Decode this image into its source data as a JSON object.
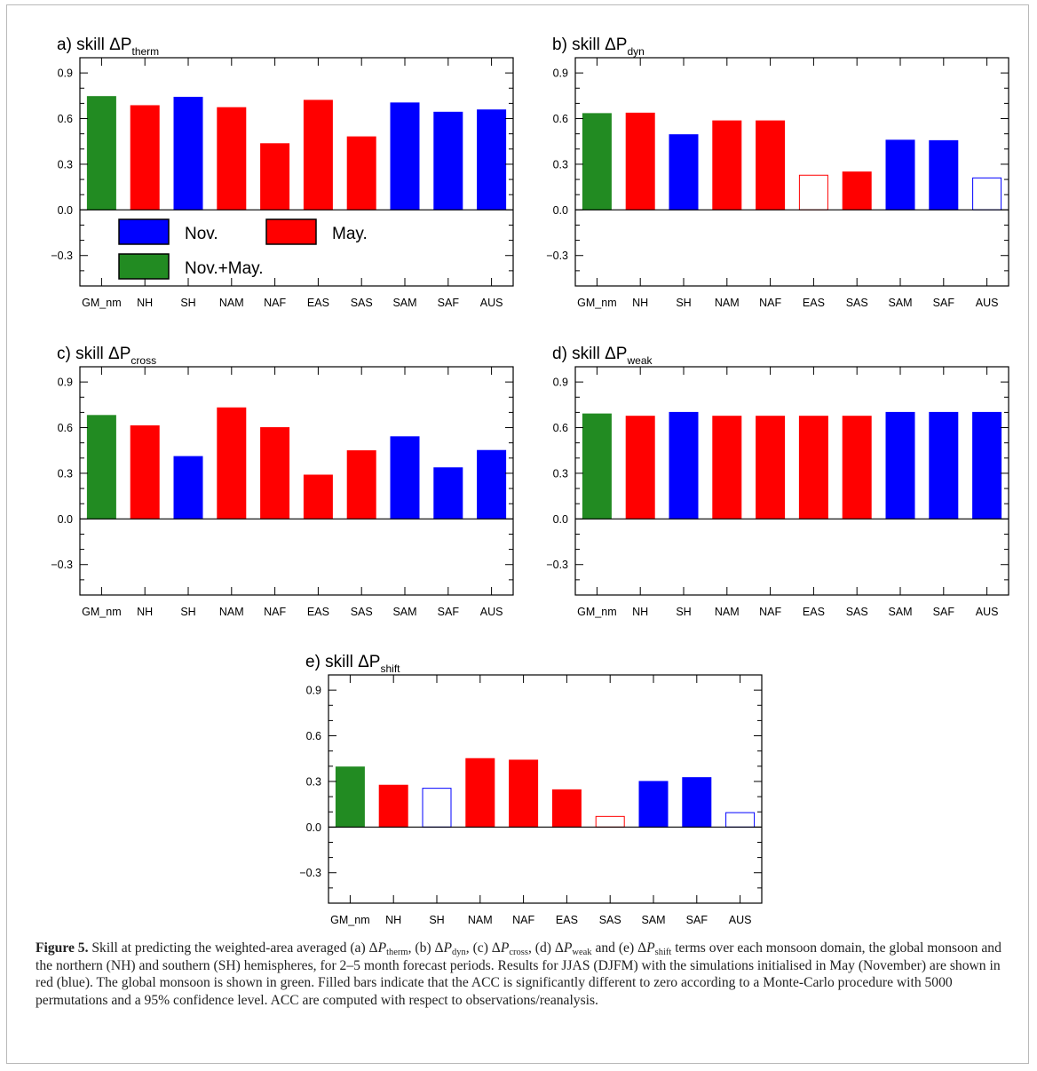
{
  "chart_data": [
    {
      "type": "bar",
      "panel": "a",
      "title": "a)  skill  ΔP",
      "title_subscript": "therm",
      "categories": [
        "GM_nm",
        "NH",
        "SH",
        "NAM",
        "NAF",
        "EAS",
        "SAS",
        "SAM",
        "SAF",
        "AUS"
      ],
      "values": [
        0.745,
        0.685,
        0.74,
        0.672,
        0.435,
        0.72,
        0.48,
        0.703,
        0.642,
        0.657
      ],
      "season": [
        "Nov.+May.",
        "May.",
        "Nov.",
        "May.",
        "May.",
        "May.",
        "May.",
        "Nov.",
        "Nov.",
        "Nov."
      ],
      "filled": [
        true,
        true,
        true,
        true,
        true,
        true,
        true,
        true,
        true,
        true
      ],
      "ylim": [
        -0.5,
        1.0
      ],
      "yticks": [
        "0.9",
        "0.6",
        "0.3",
        "0.0",
        "−0.3"
      ],
      "ytick_values": [
        0.9,
        0.6,
        0.3,
        0.0,
        -0.3
      ]
    },
    {
      "type": "bar",
      "panel": "b",
      "title": "b)  skill  ΔP",
      "title_subscript": "dyn",
      "categories": [
        "GM_nm",
        "NH",
        "SH",
        "NAM",
        "NAF",
        "EAS",
        "SAS",
        "SAM",
        "SAF",
        "AUS"
      ],
      "values": [
        0.633,
        0.636,
        0.494,
        0.585,
        0.585,
        0.228,
        0.249,
        0.458,
        0.455,
        0.21
      ],
      "season": [
        "Nov.+May.",
        "May.",
        "Nov.",
        "May.",
        "May.",
        "May.",
        "May.",
        "Nov.",
        "Nov.",
        "Nov."
      ],
      "filled": [
        true,
        true,
        true,
        true,
        true,
        false,
        true,
        true,
        true,
        false
      ],
      "ylim": [
        -0.5,
        1.0
      ],
      "yticks": [
        "0.9",
        "0.6",
        "0.3",
        "0.0",
        "−0.3"
      ],
      "ytick_values": [
        0.9,
        0.6,
        0.3,
        0.0,
        -0.3
      ]
    },
    {
      "type": "bar",
      "panel": "c",
      "title": "c)  skill  ΔP",
      "title_subscript": "cross",
      "categories": [
        "GM_nm",
        "NH",
        "SH",
        "NAM",
        "NAF",
        "EAS",
        "SAS",
        "SAM",
        "SAF",
        "AUS"
      ],
      "values": [
        0.68,
        0.612,
        0.41,
        0.73,
        0.6,
        0.288,
        0.448,
        0.54,
        0.336,
        0.45
      ],
      "season": [
        "Nov.+May.",
        "May.",
        "Nov.",
        "May.",
        "May.",
        "May.",
        "May.",
        "Nov.",
        "Nov.",
        "Nov."
      ],
      "filled": [
        true,
        true,
        true,
        true,
        true,
        true,
        true,
        true,
        true,
        true
      ],
      "ylim": [
        -0.5,
        1.0
      ],
      "yticks": [
        "0.9",
        "0.6",
        "0.3",
        "0.0",
        "−0.3"
      ],
      "ytick_values": [
        0.9,
        0.6,
        0.3,
        0.0,
        -0.3
      ]
    },
    {
      "type": "bar",
      "panel": "d",
      "title": "d)  skill  ΔP",
      "title_subscript": "weak",
      "categories": [
        "GM_nm",
        "NH",
        "SH",
        "NAM",
        "NAF",
        "EAS",
        "SAS",
        "SAM",
        "SAF",
        "AUS"
      ],
      "values": [
        0.69,
        0.675,
        0.7,
        0.675,
        0.675,
        0.675,
        0.675,
        0.7,
        0.7,
        0.7
      ],
      "season": [
        "Nov.+May.",
        "May.",
        "Nov.",
        "May.",
        "May.",
        "May.",
        "May.",
        "Nov.",
        "Nov.",
        "Nov."
      ],
      "filled": [
        true,
        true,
        true,
        true,
        true,
        true,
        true,
        true,
        true,
        true
      ],
      "ylim": [
        -0.5,
        1.0
      ],
      "yticks": [
        "0.9",
        "0.6",
        "0.3",
        "0.0",
        "−0.3"
      ],
      "ytick_values": [
        0.9,
        0.6,
        0.3,
        0.0,
        -0.3
      ]
    },
    {
      "type": "bar",
      "panel": "e",
      "title": "e)  skill  ΔP",
      "title_subscript": "shift",
      "categories": [
        "GM_nm",
        "NH",
        "SH",
        "NAM",
        "NAF",
        "EAS",
        "SAS",
        "SAM",
        "SAF",
        "AUS"
      ],
      "values": [
        0.395,
        0.275,
        0.255,
        0.45,
        0.44,
        0.245,
        0.07,
        0.3,
        0.325,
        0.095
      ],
      "season": [
        "Nov.+May.",
        "May.",
        "Nov.",
        "May.",
        "May.",
        "May.",
        "May.",
        "Nov.",
        "Nov.",
        "Nov."
      ],
      "filled": [
        true,
        true,
        false,
        true,
        true,
        true,
        false,
        true,
        true,
        false
      ],
      "ylim": [
        -0.5,
        1.0
      ],
      "yticks": [
        "0.9",
        "0.6",
        "0.3",
        "0.0",
        "−0.3"
      ],
      "ytick_values": [
        0.9,
        0.6,
        0.3,
        0.0,
        -0.3
      ]
    }
  ],
  "legend": {
    "placement": "inside panel a, below zero line",
    "items": [
      {
        "label": "Nov.",
        "color": "#0000ff"
      },
      {
        "label": "May.",
        "color": "#ff0000"
      },
      {
        "label": "Nov.+May.",
        "color": "#228b22"
      }
    ]
  },
  "colors": {
    "Nov.": "#0000ff",
    "May.": "#ff0000",
    "Nov.+May.": "#228b22"
  },
  "caption": {
    "label": "Figure 5.",
    "t1": " Skill at predicting the weighted-area averaged (a) Δ",
    "s1": "therm",
    "t2": ", (b) Δ",
    "s2": "dyn",
    "t3": ", (c) Δ",
    "s3": "cross",
    "t4": ", (d) Δ",
    "s4": "weak",
    "t5": " and (e) Δ",
    "s5": "shift",
    "t6": " terms over each monsoon domain, the global monsoon and the northern (NH) and southern (SH) hemispheres, for 2–5 month forecast periods. Results for JJAS (DJFM) with the simulations initialised in May (November) are shown in red (blue). The global monsoon is shown in green. Filled bars indicate that the ACC is significantly different to zero according to a Monte-Carlo procedure with 5000 permutations and a 95% confidence level. ACC are computed with respect to observations/reanalysis.",
    "P": "P"
  }
}
